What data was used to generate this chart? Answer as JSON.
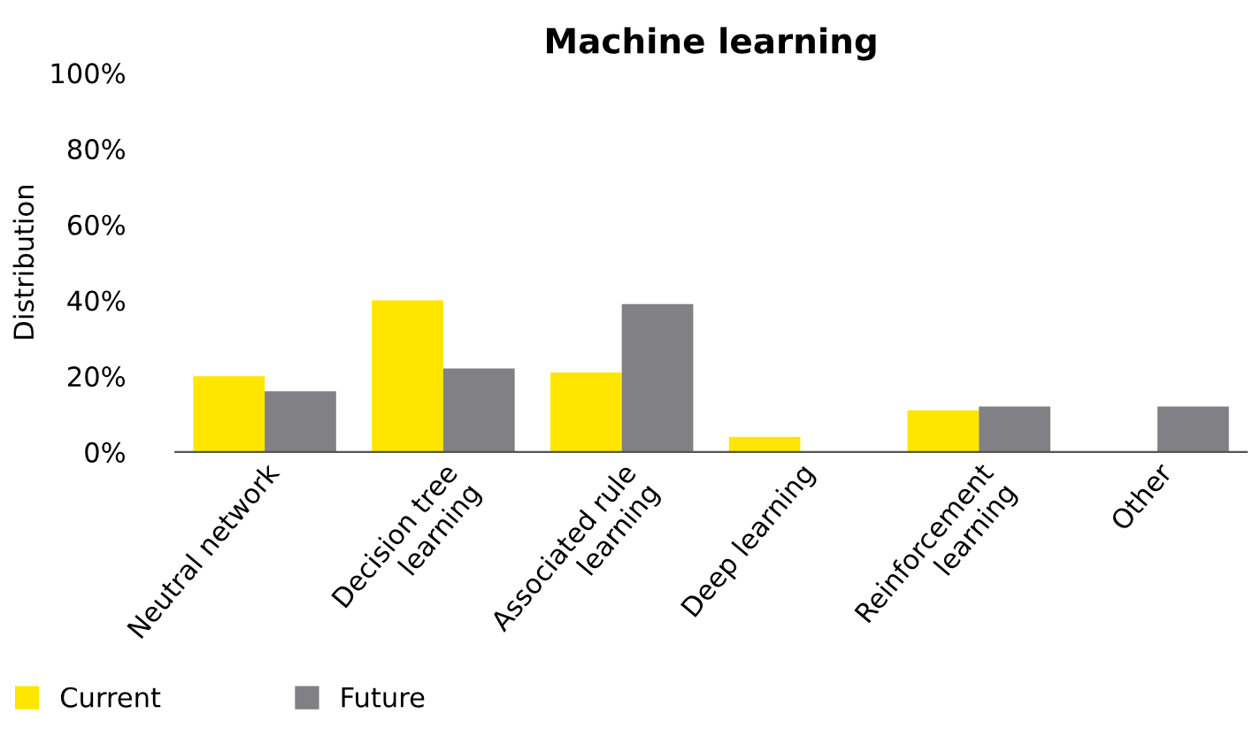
{
  "chart_data": {
    "type": "bar",
    "title": "Machine learning",
    "ylabel": "Distribution",
    "categories": [
      "Neutral network",
      "Decision tree\nlearning",
      "Associated rule\nlearning",
      "Deep learning",
      "Reinforcement\nlearning",
      "Other"
    ],
    "series": [
      {
        "name": "Current",
        "color": "#ffe600",
        "values": [
          20,
          40,
          21,
          4,
          11,
          0
        ]
      },
      {
        "name": "Future",
        "color": "#808085",
        "values": [
          16,
          22,
          39,
          0,
          12,
          12
        ]
      }
    ],
    "ylim": [
      0,
      100
    ],
    "yticks": [
      {
        "value": 0,
        "label": "0%"
      },
      {
        "value": 20,
        "label": "20%"
      },
      {
        "value": 40,
        "label": "40%"
      },
      {
        "value": 60,
        "label": "60%"
      },
      {
        "value": 80,
        "label": "80%"
      },
      {
        "value": 100,
        "label": "100%"
      }
    ],
    "grid": false,
    "legend": "bottom left"
  }
}
